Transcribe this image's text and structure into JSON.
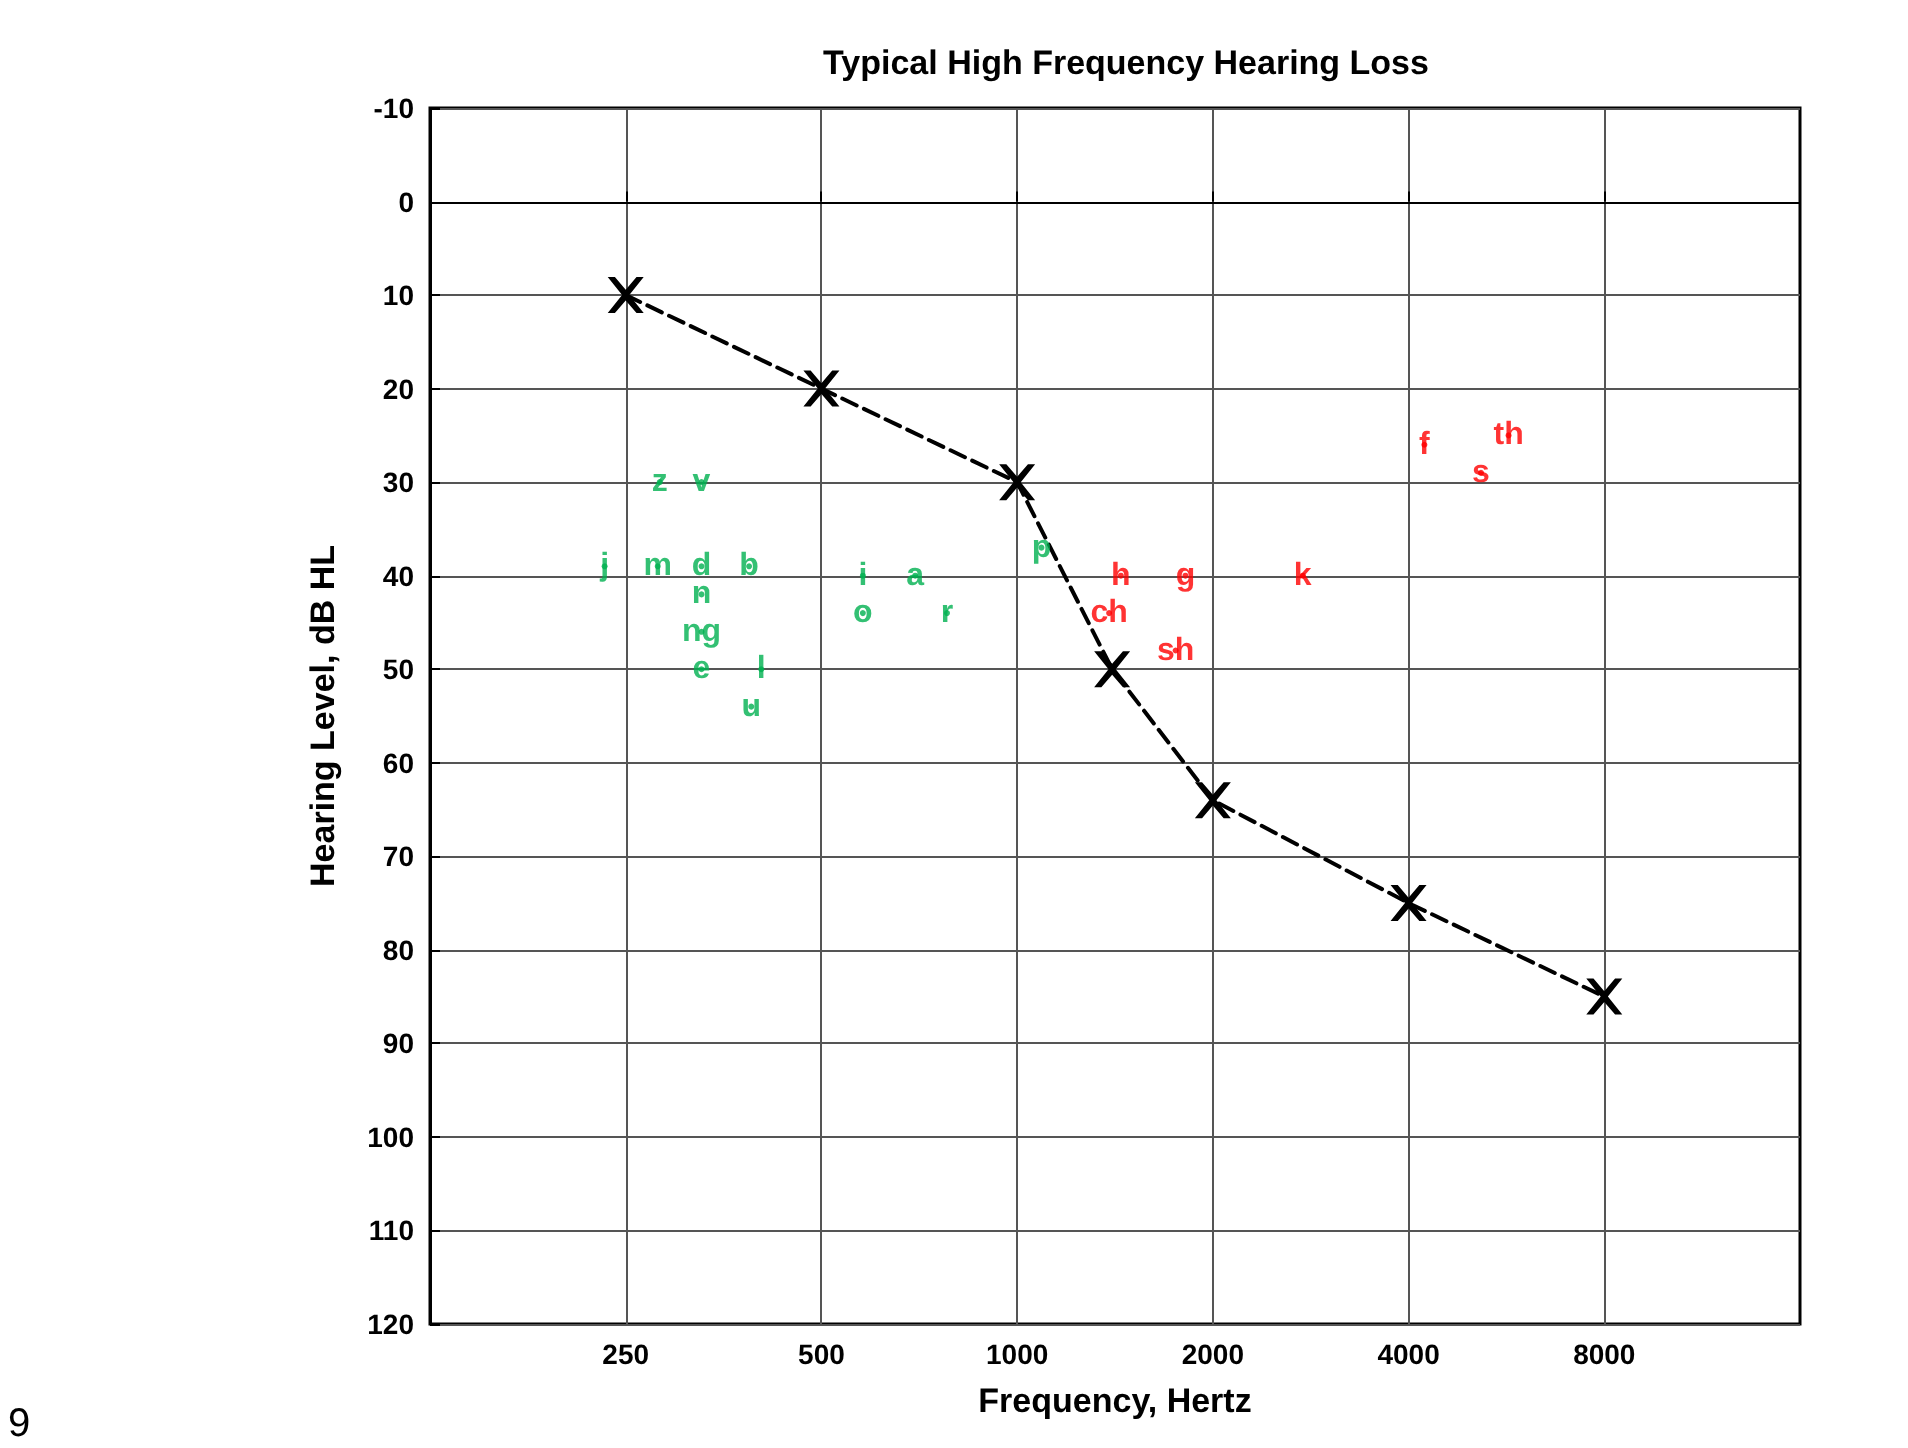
{
  "chart_data": {
    "type": "line",
    "title": "Typical High Frequency Hearing Loss",
    "xlabel": "Frequency, Hertz",
    "ylabel": "Hearing Level, dB HL",
    "log": "x",
    "xlim": [
      125,
      16000
    ],
    "xticks": [
      250,
      500,
      1000,
      2000,
      4000,
      8000
    ],
    "ylim": [
      120,
      -10
    ],
    "yticks": [
      -10,
      0,
      10,
      20,
      30,
      40,
      50,
      60,
      70,
      80,
      90,
      100,
      110,
      120
    ],
    "grid": true,
    "annotations": [
      "9"
    ],
    "series": [
      {
        "color": "#000000",
        "marker": "cross",
        "line_style": "dashed",
        "x": [
          250,
          500,
          1000,
          1400,
          2000,
          4000,
          8000
        ],
        "values": [
          10,
          20,
          30,
          50,
          64,
          75,
          85
        ]
      },
      {
        "type": "scatter",
        "color": "#00b050",
        "marker": "none",
        "x": [
          282,
          327,
          232,
          280,
          327,
          387,
          327,
          327,
          327,
          404,
          390,
          579,
          579,
          697,
          780,
          1090
        ],
        "values": [
          30,
          30,
          39,
          39,
          39,
          39,
          42,
          46,
          50,
          50,
          54,
          40,
          44,
          40,
          44,
          37
        ],
        "value_labels": [
          "z",
          "v",
          "j",
          "m",
          "d",
          "b",
          "n",
          "ng",
          "e",
          "l",
          "u",
          "i",
          "o",
          "a",
          "r",
          "p"
        ]
      },
      {
        "type": "scatter",
        "color": "#ff0000",
        "marker": "none",
        "x": [
          1444,
          1815,
          1385,
          1753,
          2750,
          4230,
          5700,
          5170
        ],
        "values": [
          40,
          40,
          44,
          48,
          40,
          26,
          25,
          29
        ],
        "value_labels": [
          "h",
          "g",
          "ch",
          "sh",
          "k",
          "f",
          "th",
          "s"
        ]
      }
    ]
  }
}
